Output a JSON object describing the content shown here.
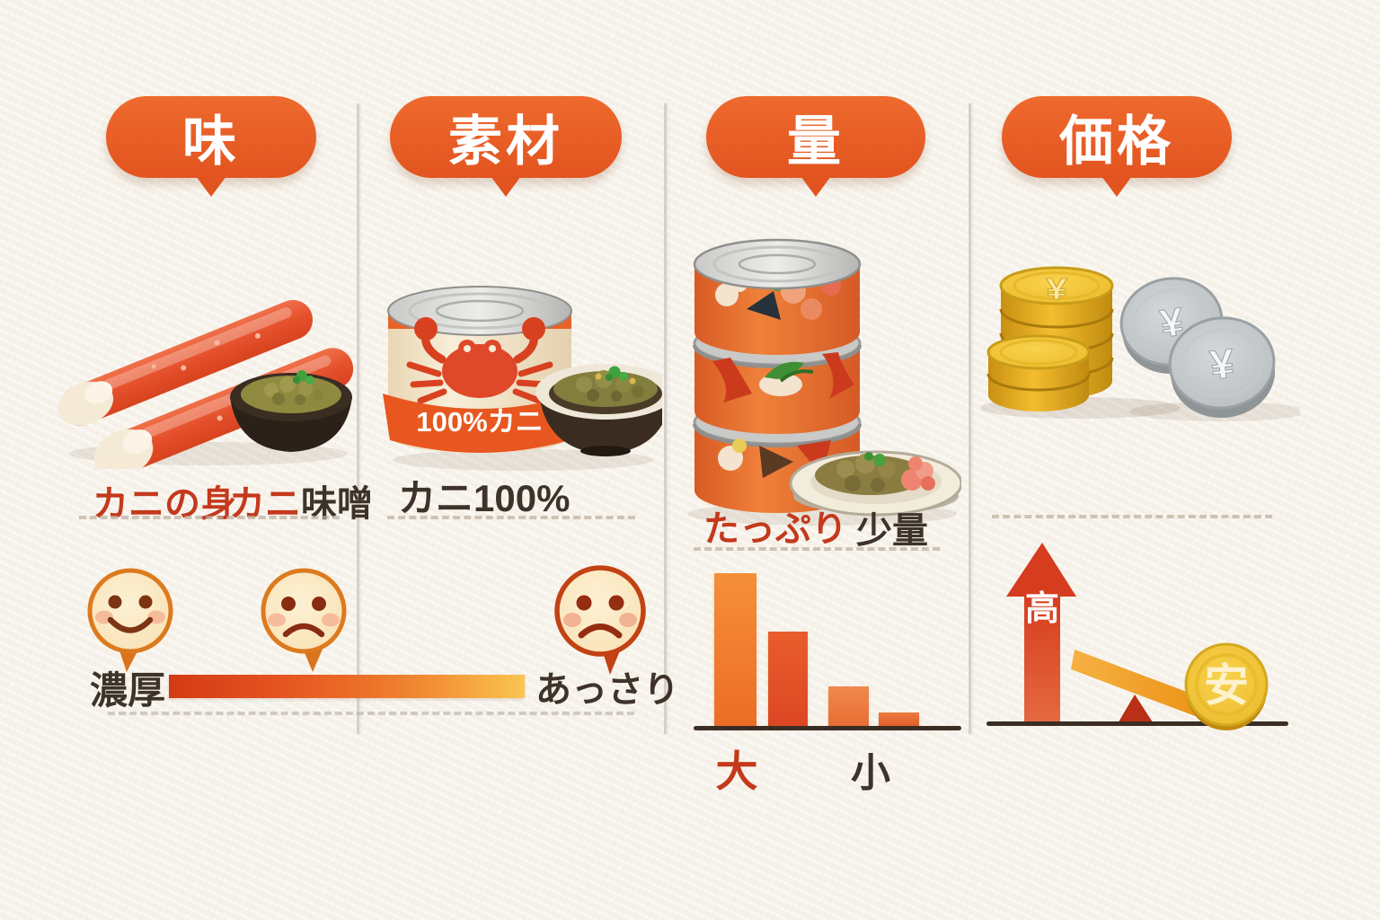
{
  "colors": {
    "background": "#f6f2ea",
    "accent_orange": "#e85c24",
    "red_text": "#c4391c",
    "dark_text": "#3e332a",
    "gradient_bar_left": "#d43a15",
    "gradient_bar_right": "#f9c553",
    "gold_coin": "#f5c838",
    "silver_coin": "#c3c7ca",
    "dashed_line": "#bcaf9f"
  },
  "headers": {
    "taste": "味",
    "material": "素材",
    "quantity": "量",
    "price": "価格"
  },
  "taste": {
    "meat_label": "カニの身",
    "miso_label_red": "カニ",
    "miso_label_dark": "味噌",
    "scale_left": "濃厚",
    "scale_right": "あっさり",
    "faces": [
      "smiley-face",
      "frown-face",
      "frown-face"
    ]
  },
  "material": {
    "can_text": "100%カニ",
    "label": "カニ100%"
  },
  "quantity": {
    "label_plenty": "たっぷり",
    "label_small": "少量",
    "axis_large": "大",
    "axis_small": "小"
  },
  "price": {
    "high_label": "高",
    "cheap_label": "安",
    "yen_symbol": "¥"
  },
  "chart_data": {
    "type": "bar",
    "categories": [
      "大",
      "",
      "",
      "小"
    ],
    "values": [
      100,
      62,
      26,
      9
    ],
    "ylim": [
      0,
      100
    ],
    "title": "",
    "xlabel": "",
    "ylabel": "",
    "grid": false,
    "legend": false,
    "bar_colors": [
      "#f0762a",
      "#e2512a",
      "#ee7f48",
      "#e8743c"
    ]
  }
}
